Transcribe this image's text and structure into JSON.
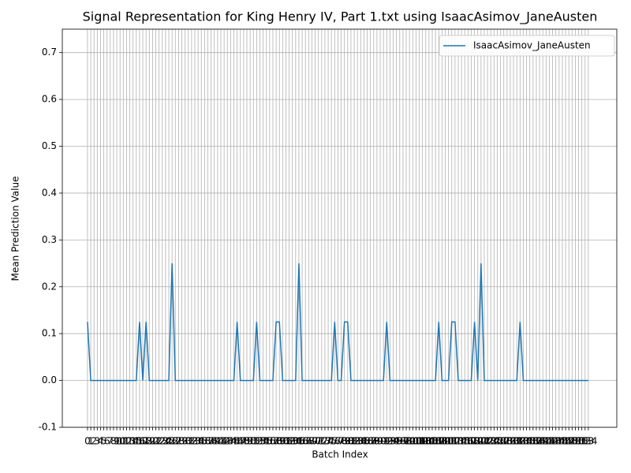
{
  "chart_data": {
    "type": "line",
    "title": "Signal Representation for King Henry IV, Part 1.txt using IsaacAsimov_JaneAusten",
    "x_label": "Batch Index",
    "y_label": "Mean Prediction Value",
    "x": [
      0,
      1,
      2,
      3,
      4,
      5,
      6,
      7,
      8,
      9,
      10,
      11,
      12,
      13,
      14,
      15,
      16,
      17,
      18,
      19,
      20,
      21,
      22,
      23,
      24,
      25,
      26,
      27,
      28,
      29,
      30,
      31,
      32,
      33,
      34,
      35,
      36,
      37,
      38,
      39,
      40,
      41,
      42,
      43,
      44,
      45,
      46,
      47,
      48,
      49,
      50,
      51,
      52,
      53,
      54,
      55,
      56,
      57,
      58,
      59,
      60,
      61,
      62,
      63,
      64,
      65,
      66,
      67,
      68,
      69,
      70,
      71,
      72,
      73,
      74,
      75,
      76,
      77,
      78,
      79,
      80,
      81,
      82,
      83,
      84,
      85,
      86,
      87,
      88,
      89,
      90,
      91,
      92,
      93,
      94,
      95,
      96,
      97,
      98,
      99,
      100,
      101,
      102,
      103,
      104,
      105,
      106,
      107,
      108,
      109,
      110,
      111,
      112,
      113,
      114,
      115,
      116,
      117,
      118,
      119,
      120,
      121,
      122,
      123,
      124,
      125,
      126,
      127,
      128,
      129,
      130,
      131,
      132,
      133,
      134,
      135,
      136,
      137,
      138,
      139,
      140,
      141,
      142,
      143,
      144,
      145,
      146,
      147,
      148,
      149,
      150,
      151,
      152,
      153,
      154
    ],
    "series": [
      {
        "name": "IsaacAsimov_JaneAusten",
        "color": "#1f77b4",
        "values": [
          0.125,
          0,
          0,
          0,
          0,
          0,
          0,
          0,
          0,
          0,
          0,
          0,
          0,
          0,
          0,
          0,
          0.125,
          0,
          0.125,
          0,
          0,
          0,
          0,
          0,
          0,
          0,
          0.25,
          0,
          0,
          0,
          0,
          0,
          0,
          0,
          0,
          0,
          0,
          0,
          0,
          0,
          0,
          0,
          0,
          0,
          0,
          0,
          0.125,
          0,
          0,
          0,
          0,
          0,
          0.125,
          0,
          0,
          0,
          0,
          0,
          0.125,
          0.125,
          0,
          0,
          0,
          0,
          0,
          0.25,
          0,
          0,
          0,
          0,
          0,
          0,
          0,
          0,
          0,
          0,
          0.125,
          0,
          0,
          0.125,
          0.125,
          0,
          0,
          0,
          0,
          0,
          0,
          0,
          0,
          0,
          0,
          0,
          0.125,
          0,
          0,
          0,
          0,
          0,
          0,
          0,
          0,
          0,
          0,
          0,
          0,
          0,
          0,
          0,
          0.125,
          0,
          0,
          0,
          0.125,
          0.125,
          0,
          0,
          0,
          0,
          0,
          0.125,
          0,
          0.25,
          0,
          0,
          0,
          0,
          0,
          0,
          0,
          0,
          0,
          0,
          0,
          0.125,
          0,
          0,
          0,
          0,
          0,
          0,
          0,
          0,
          0,
          0,
          0,
          0,
          0,
          0,
          0,
          0,
          0,
          0,
          0,
          0,
          0
        ]
      }
    ],
    "xlim": [
      -7.75,
      162.75
    ],
    "xticks": [
      0,
      1,
      2,
      3,
      4,
      5,
      6,
      7,
      8,
      9,
      10,
      11,
      12,
      13,
      14,
      15,
      16,
      17,
      18,
      19,
      20,
      21,
      22,
      23,
      24,
      25,
      26,
      27,
      28,
      29,
      30,
      31,
      32,
      33,
      34,
      35,
      36,
      37,
      38,
      39,
      40,
      41,
      42,
      43,
      44,
      45,
      46,
      47,
      48,
      49,
      50,
      51,
      52,
      53,
      54,
      55,
      56,
      57,
      58,
      59,
      60,
      61,
      62,
      63,
      64,
      65,
      66,
      67,
      68,
      69,
      70,
      71,
      72,
      73,
      74,
      75,
      76,
      77,
      78,
      79,
      80,
      81,
      82,
      83,
      84,
      85,
      86,
      87,
      88,
      89,
      90,
      91,
      92,
      93,
      94,
      95,
      96,
      97,
      98,
      99,
      100,
      101,
      102,
      103,
      104,
      105,
      106,
      107,
      108,
      109,
      110,
      111,
      112,
      113,
      114,
      115,
      116,
      117,
      118,
      119,
      120,
      121,
      122,
      123,
      124,
      125,
      126,
      127,
      128,
      129,
      130,
      131,
      132,
      133,
      134,
      135,
      136,
      137,
      138,
      139,
      140,
      141,
      142,
      143,
      144,
      145,
      146,
      147,
      148,
      149,
      150,
      151,
      152,
      153,
      154
    ],
    "ylim": [
      -0.1,
      0.75
    ],
    "yticks": [
      -0.1,
      {
        "value": 0,
        "label": "0.0"
      },
      0.1,
      0.2,
      0.3,
      0.4,
      0.5,
      0.6,
      0.7
    ],
    "grid": true,
    "legend": "upper right"
  }
}
